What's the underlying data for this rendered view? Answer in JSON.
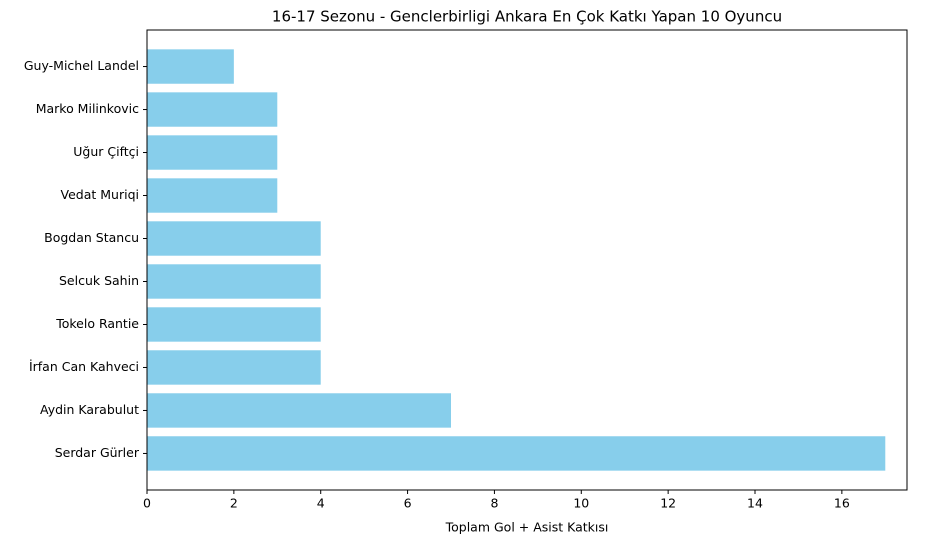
{
  "chart_data": {
    "type": "barh",
    "title": "16-17 Sezonu - Genclerbirligi Ankara En Çok Katkı Yapan 10 Oyuncu",
    "x_label": "Toplam Gol + Asist Katkısı",
    "categories": [
      "Guy-Michel Landel",
      "Marko Milinkovic",
      "Uğur Çiftçi",
      "Vedat Muriqi",
      "Bogdan Stancu",
      "Selcuk Sahin",
      "Tokelo Rantie",
      "İrfan Can Kahveci",
      "Aydin Karabulut",
      "Serdar Gürler"
    ],
    "values": [
      2,
      3,
      3,
      3,
      4,
      4,
      4,
      4,
      7,
      17
    ],
    "color": "#87ceeb",
    "xlim": [
      0,
      17.5
    ],
    "xticks": [
      0,
      2,
      4,
      6,
      8,
      10,
      12,
      14,
      16
    ],
    "grid": false
  }
}
